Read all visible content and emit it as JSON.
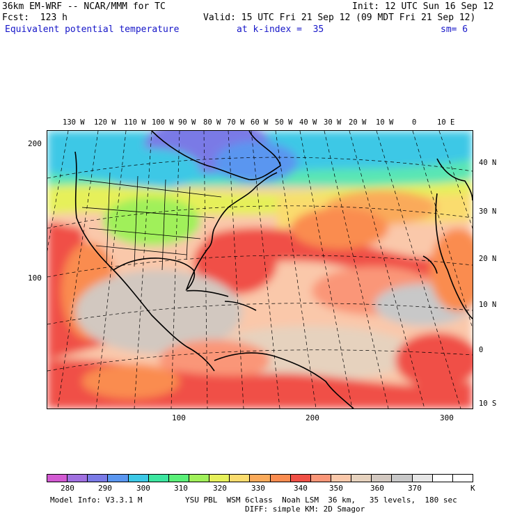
{
  "header": {
    "line1_left": "36km EM-WRF -- NCAR/MMM for TC",
    "line1_right": "Init: 12 UTC Sun 16 Sep 12",
    "line2_left": "Fcst:  123 h",
    "line2_right": "Valid: 15 UTC Fri 21 Sep 12 (09 MDT Fri 21 Sep 12)",
    "line3_field": "Equivalent potential temperature",
    "line3_level": "at k-index =  35",
    "line3_smooth": "sm= 6"
  },
  "map": {
    "top_lon_labels": [
      "130 W",
      "120 W",
      "110 W",
      "100 W",
      "90 W",
      "80 W",
      "70 W",
      "60 W",
      "50 W",
      "40 W",
      "30 W",
      "20 W",
      "10 W",
      "0",
      "10 E"
    ],
    "right_lat_labels": [
      "40 N",
      "30 N",
      "20 N",
      "10 N",
      "0",
      "10 S"
    ],
    "left_grid_labels": [
      "200",
      "100"
    ],
    "bottom_grid_labels": [
      "100",
      "200",
      "300"
    ]
  },
  "colorbar": {
    "colors": [
      "#d25ad2",
      "#a070e0",
      "#7a7ae6",
      "#5a96f0",
      "#3cc8e6",
      "#3ce6a0",
      "#5af078",
      "#a0f05a",
      "#e6f05a",
      "#fadc6e",
      "#faaa5a",
      "#fa8c50",
      "#f05046",
      "#fa9678",
      "#fac8aa",
      "#e6d2be",
      "#d2c8c0",
      "#c8c8c8",
      "#e6e6e6",
      "#ffffff",
      "#ffffff"
    ],
    "labels": [
      "280",
      "290",
      "300",
      "310",
      "320",
      "330",
      "340",
      "350",
      "360",
      "370"
    ],
    "unit": "K"
  },
  "footer": {
    "model_info": "Model Info: V3.3.1 M",
    "physics_line1": "YSU PBL  WSM 6class  Noah LSM  36 km,   35 levels,  180 sec",
    "physics_line2": "DIFF: simple KM: 2D Smagor"
  }
}
